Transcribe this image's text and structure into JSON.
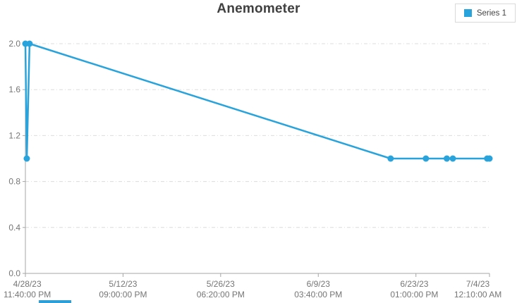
{
  "title": {
    "text": "Anemometer"
  },
  "legend": {
    "position": "top-right",
    "items": [
      {
        "label": "Series 1",
        "color": "#29a3dc"
      }
    ]
  },
  "colors": {
    "series_blue": "#29a3dc",
    "axis_line": "#a6a6a6",
    "gridline": "#dcdcdc",
    "tick_text": "#757575",
    "title_text": "#404040",
    "legend_border": "#d9d9d9",
    "bottom_bar_blue": "#2f9fd8"
  },
  "chart_data": {
    "type": "line",
    "title": "Anemometer",
    "xlabel": "",
    "ylabel": "",
    "ylim": [
      0.0,
      2.0
    ],
    "y_ticks": [
      0.0,
      0.4,
      0.8,
      1.2,
      1.6,
      2.0
    ],
    "y_tick_labels": [
      "0.0",
      "0.4",
      "0.8",
      "1.2",
      "1.6",
      "2.0"
    ],
    "grid": {
      "show": true,
      "style": "dash-dot",
      "axis": "y"
    },
    "legend_position": "top-right",
    "x_ticks": [
      {
        "date": "4/28/23",
        "time": "11:40:00 PM",
        "frac": 0.0,
        "label_frac": 0.004
      },
      {
        "date": "5/12/23",
        "time": "09:00:00 PM",
        "frac": 0.2104,
        "label_frac": 0.2104
      },
      {
        "date": "5/26/23",
        "time": "06:20:00 PM",
        "frac": 0.4207,
        "label_frac": 0.4207
      },
      {
        "date": "6/9/23",
        "time": "03:40:00 PM",
        "frac": 0.6311,
        "label_frac": 0.6311
      },
      {
        "date": "6/23/23",
        "time": "01:00:00 PM",
        "frac": 0.8415,
        "label_frac": 0.838
      },
      {
        "date": "7/4/23",
        "time": "12:10:00 AM",
        "frac": 1.0,
        "label_frac": 0.975
      }
    ],
    "series": [
      {
        "name": "Series 1",
        "color": "#29a3dc",
        "marker": "circle",
        "points": [
          {
            "frac": 0.0,
            "value": 2.0
          },
          {
            "frac": 0.003,
            "value": 1.0
          },
          {
            "frac": 0.009,
            "value": 2.0
          },
          {
            "frac": 0.787,
            "value": 1.0
          },
          {
            "frac": 0.863,
            "value": 1.0
          },
          {
            "frac": 0.908,
            "value": 1.0
          },
          {
            "frac": 0.921,
            "value": 1.0
          },
          {
            "frac": 0.995,
            "value": 1.0
          },
          {
            "frac": 1.0,
            "value": 1.0
          }
        ]
      }
    ]
  }
}
